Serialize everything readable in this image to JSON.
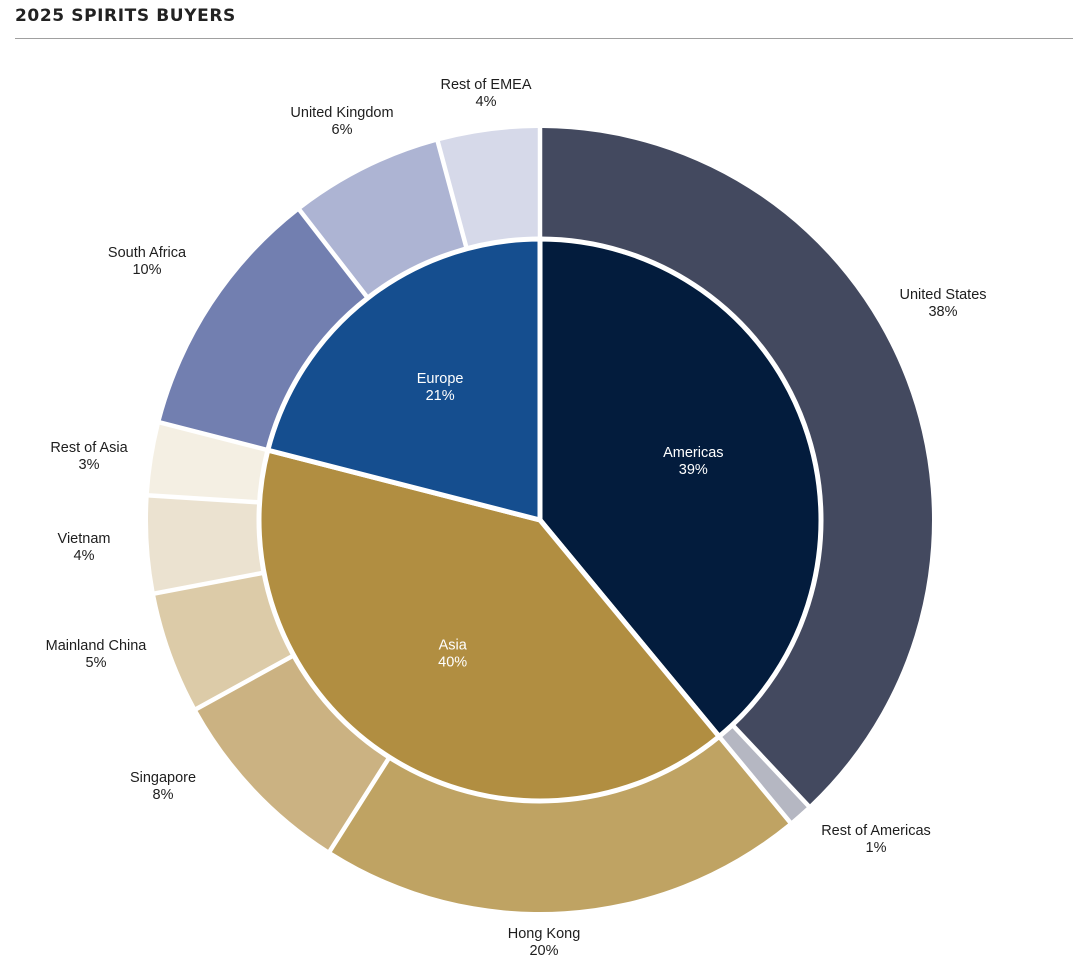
{
  "page": {
    "title": "2025 SPIRITS BUYERS"
  },
  "chart_data": {
    "type": "pie",
    "subtype": "nested-donut",
    "title": "2025 SPIRITS BUYERS",
    "inner": [
      {
        "label": "Americas",
        "value": 39,
        "display": "39%",
        "color": "#031c3d",
        "text_color": "#ffffff"
      },
      {
        "label": "Asia",
        "value": 40,
        "display": "40%",
        "color": "#b18e41",
        "text_color": "#ffffff"
      },
      {
        "label": "Europe",
        "value": 21,
        "display": "21%",
        "color": "#154e8f",
        "text_color": "#ffffff"
      }
    ],
    "outer": [
      {
        "label": "United States",
        "value": 38,
        "display": "38%",
        "color": "#43495f",
        "parent": "Americas"
      },
      {
        "label": "Rest of Americas",
        "value": 1,
        "display": "1%",
        "color": "#b5b7c2",
        "parent": "Americas"
      },
      {
        "label": "Hong Kong",
        "value": 20,
        "display": "20%",
        "color": "#bfa363",
        "parent": "Asia"
      },
      {
        "label": "Singapore",
        "value": 8,
        "display": "8%",
        "color": "#cbb282",
        "parent": "Asia"
      },
      {
        "label": "Mainland China",
        "value": 5,
        "display": "5%",
        "color": "#dccba8",
        "parent": "Asia"
      },
      {
        "label": "Vietnam",
        "value": 4,
        "display": "4%",
        "color": "#ebe2d0",
        "parent": "Asia"
      },
      {
        "label": "Rest of Asia",
        "value": 3,
        "display": "3%",
        "color": "#f4efe3",
        "parent": "Asia"
      },
      {
        "label": "South Africa",
        "value": 10,
        "display": "10%",
        "color": "#727fb0",
        "parent": "Europe"
      },
      {
        "label": "United Kingdom",
        "value": 6,
        "display": "6%",
        "color": "#adb4d3",
        "parent": "Europe"
      },
      {
        "label": "Rest of EMEA",
        "value": 4,
        "display": "4%",
        "color": "#d6d9e9",
        "parent": "Europe"
      }
    ]
  }
}
